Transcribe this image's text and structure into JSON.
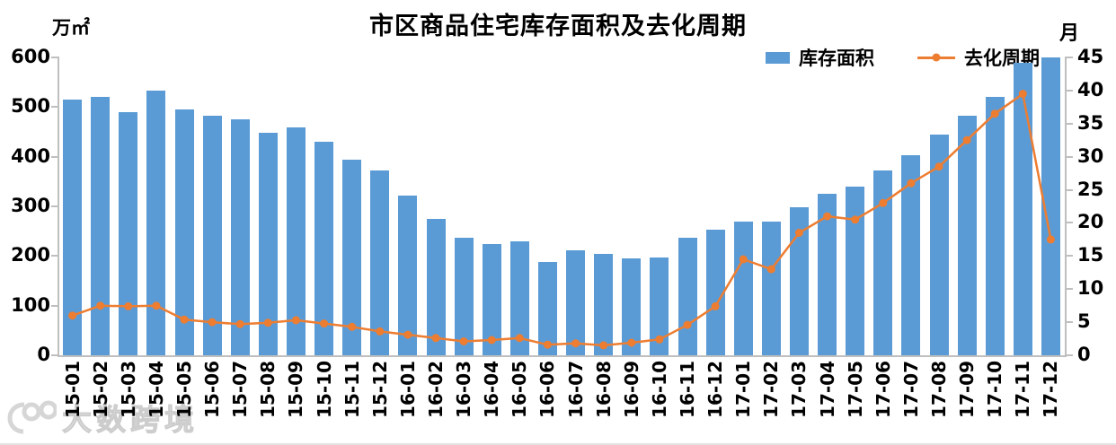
{
  "chart": {
    "title": "市区商品住宅库存面积及去化周期",
    "left_axis": {
      "unit": "万㎡",
      "min": 0,
      "max": 600,
      "step": 100
    },
    "right_axis": {
      "unit": "月",
      "min": 0,
      "max": 45,
      "step": 5
    },
    "colors": {
      "bar": "#5B9BD5",
      "line": "#ED7D31",
      "axis": "#BFBFBF",
      "text": "#000000"
    }
  },
  "watermark": {
    "text": "大数跨境",
    "logo": "100-circles-logo"
  },
  "chart_data": {
    "type": "bar+line",
    "title": "市区商品住宅库存面积及去化周期",
    "categories": [
      "15-01",
      "15-02",
      "15-03",
      "15-04",
      "15-05",
      "15-06",
      "15-07",
      "15-08",
      "15-09",
      "15-10",
      "15-11",
      "15-12",
      "16-01",
      "16-02",
      "16-03",
      "16-04",
      "16-05",
      "16-06",
      "16-07",
      "16-08",
      "16-09",
      "16-10",
      "16-11",
      "16-12",
      "17-01",
      "17-02",
      "17-03",
      "17-04",
      "17-05",
      "17-06",
      "17-07",
      "17-08",
      "17-09",
      "17-10",
      "17-11",
      "17-12"
    ],
    "series": [
      {
        "name": "库存面积",
        "type": "bar",
        "axis": "left",
        "unit": "万㎡",
        "values": [
          516,
          520,
          489,
          533,
          496,
          483,
          476,
          448,
          459,
          430,
          394,
          373,
          322,
          274,
          237,
          224,
          229,
          188,
          211,
          205,
          196,
          197,
          236,
          253,
          270,
          269,
          298,
          326,
          340,
          372,
          403,
          445,
          482,
          521,
          589,
          600
        ]
      },
      {
        "name": "去化周期",
        "type": "line",
        "axis": "right",
        "unit": "月",
        "values": [
          6,
          7.5,
          7.4,
          7.5,
          5.4,
          5,
          4.7,
          4.9,
          5.3,
          4.8,
          4.3,
          3.6,
          3.1,
          2.6,
          2.1,
          2.3,
          2.6,
          1.6,
          1.8,
          1.5,
          1.9,
          2.4,
          4.6,
          7.4,
          14.5,
          13,
          18.5,
          21,
          20.5,
          23,
          26,
          28.5,
          32.5,
          36.5,
          39.5,
          17.5
        ]
      }
    ],
    "left_ylim": [
      0,
      600
    ],
    "right_ylim": [
      0,
      45
    ],
    "grid": false,
    "legend_position": "top-right",
    "xlabel": "",
    "ylabel_left": "万㎡",
    "ylabel_right": "月"
  }
}
